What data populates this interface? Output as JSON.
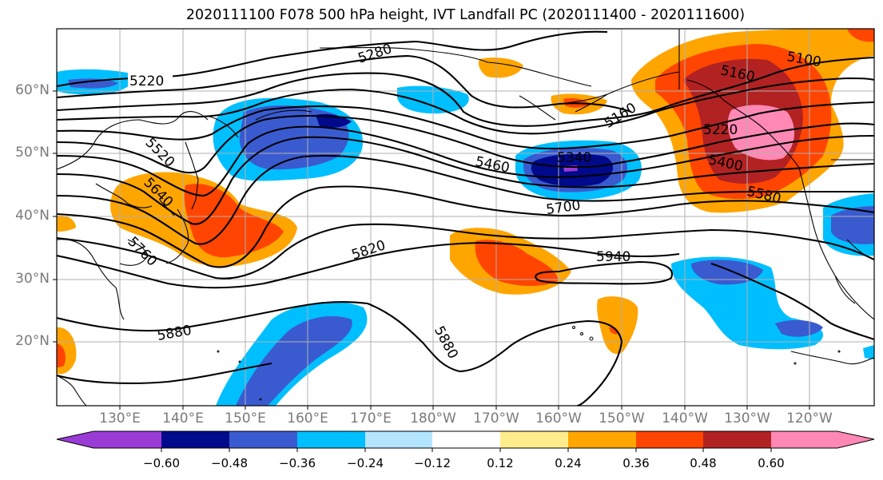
{
  "title": "2020111100 F078 500 hPa height, IVT Landfall PC (2020111400 - 2020111600)",
  "colors": {
    "neg_060": "#9a3bd6",
    "neg_048": "#000a8a",
    "neg_036": "#3a5bd0",
    "neg_024": "#00bfff",
    "neg_012": "#b3e5ff",
    "zero": "#ffffff",
    "pos_012": "#ffec8a",
    "pos_024": "#ffa500",
    "pos_036": "#ff4500",
    "pos_048": "#b22222",
    "pos_060": "#ff88b4"
  },
  "latitude_labels": [
    "60°N",
    "50°N",
    "40°N",
    "30°N",
    "20°N"
  ],
  "longitude_labels": [
    "130°E",
    "140°E",
    "150°E",
    "160°E",
    "170°E",
    "180°W",
    "170°W",
    "160°W",
    "150°W",
    "140°W",
    "130°W",
    "120°W"
  ],
  "contour_labels": [
    "5220",
    "5280",
    "5100",
    "5160",
    "5160",
    "5220",
    "5400",
    "5580",
    "5520",
    "5640",
    "5760",
    "5460",
    "5340",
    "5700",
    "5820",
    "5940",
    "5880",
    "5880"
  ],
  "colorbar": {
    "tick_labels": [
      "−0.60",
      "−0.48",
      "−0.36",
      "−0.24",
      "−0.12",
      "0.12",
      "0.24",
      "0.36",
      "0.48",
      "0.60"
    ]
  }
}
